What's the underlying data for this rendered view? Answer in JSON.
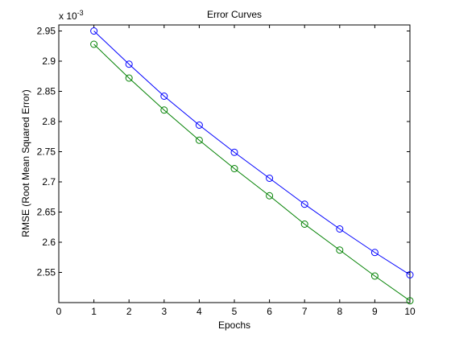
{
  "chart_data": {
    "type": "line",
    "title": "Error Curves",
    "xlabel": "Epochs",
    "ylabel": "RMSE (Root Mean Squared Error)",
    "y_multiplier": {
      "base": "x 10",
      "exponent": "-3"
    },
    "xlim": [
      0,
      10
    ],
    "ylim": [
      2.5,
      2.96
    ],
    "x_ticks": [
      "0",
      "1",
      "2",
      "3",
      "4",
      "5",
      "6",
      "7",
      "8",
      "9",
      "10"
    ],
    "y_ticks": [
      "2.55",
      "2.6",
      "2.65",
      "2.7",
      "2.75",
      "2.8",
      "2.85",
      "2.9",
      "2.95"
    ],
    "grid": false,
    "marker": "circle",
    "x": [
      1,
      2,
      3,
      4,
      5,
      6,
      7,
      8,
      9,
      10
    ],
    "series": [
      {
        "color": "#0000ff",
        "values": [
          2.95,
          2.895,
          2.842,
          2.794,
          2.749,
          2.706,
          2.663,
          2.622,
          2.583,
          2.546
        ]
      },
      {
        "color": "#008000",
        "values": [
          2.928,
          2.872,
          2.819,
          2.769,
          2.722,
          2.677,
          2.63,
          2.587,
          2.544,
          2.503
        ]
      }
    ]
  }
}
